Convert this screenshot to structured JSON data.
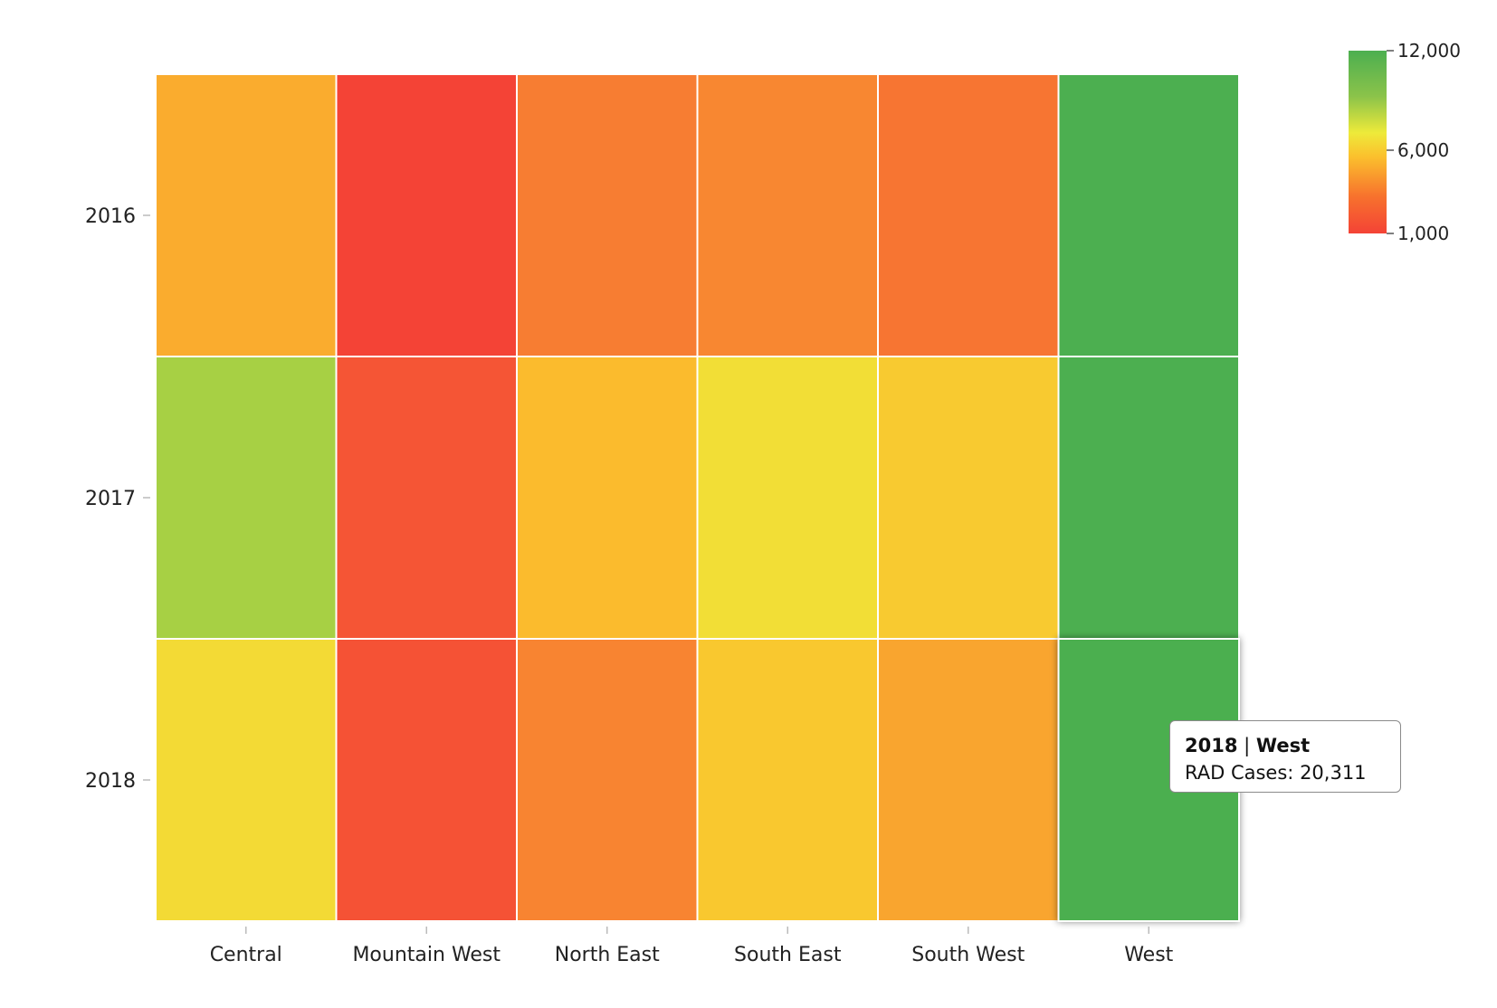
{
  "chart_data": {
    "type": "heatmap",
    "title": "",
    "xlabel": "",
    "ylabel": "",
    "x_categories": [
      "Central",
      "Mountain West",
      "North East",
      "South East",
      "South West",
      "West"
    ],
    "y_categories": [
      "2016",
      "2017",
      "2018"
    ],
    "values": [
      [
        5200,
        1000,
        3300,
        3700,
        3000,
        12000
      ],
      [
        9800,
        1700,
        5800,
        7500,
        6500,
        12000
      ],
      [
        7300,
        1600,
        3600,
        6400,
        4900,
        20311
      ]
    ],
    "colorscale": {
      "min": 1000,
      "mid": 6000,
      "max": 12000,
      "ticks": [
        "12,000",
        "6,000",
        "1,000"
      ],
      "colors": [
        "#f44336",
        "#fbc02d",
        "#eeea3a",
        "#4caf50"
      ]
    },
    "legend_position": "top-right",
    "grid": false
  },
  "tooltip": {
    "year": "2018",
    "separator": "|",
    "region": "West",
    "metric_label": "RAD Cases:",
    "metric_value": "20,311"
  }
}
